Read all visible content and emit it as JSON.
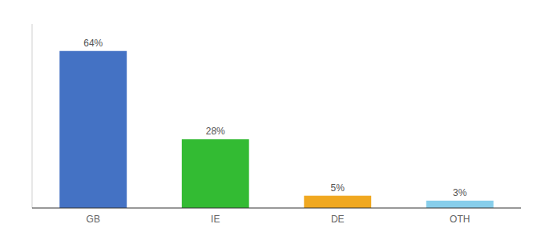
{
  "chart_data": {
    "type": "bar",
    "categories": [
      "GB",
      "IE",
      "DE",
      "OTH"
    ],
    "values": [
      64,
      28,
      5,
      3
    ],
    "value_labels": [
      "64%",
      "28%",
      "5%",
      "3%"
    ],
    "colors": [
      "#4472c4",
      "#33bb33",
      "#f0a820",
      "#87ceeb"
    ],
    "ylim": [
      0,
      75
    ],
    "data_labels": true,
    "tick_labels": "x",
    "grid": false
  }
}
